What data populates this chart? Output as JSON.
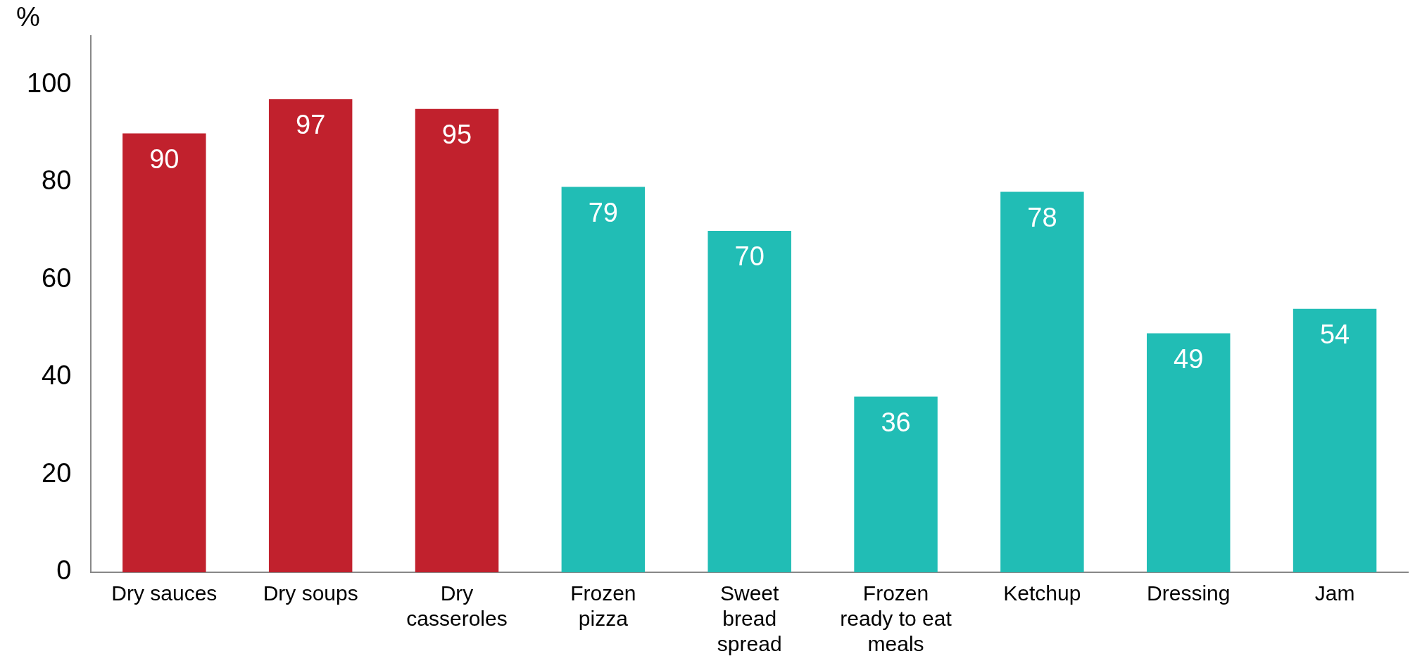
{
  "chart_data": {
    "type": "bar",
    "ylabel": "%",
    "categories": [
      "Dry sauces",
      "Dry soups",
      "Dry casseroles",
      "Frozen pizza",
      "Sweet bread spread",
      "Frozen ready to eat meals",
      "Ketchup",
      "Dressing",
      "Jam"
    ],
    "values": [
      90,
      97,
      95,
      79,
      70,
      36,
      78,
      49,
      54
    ],
    "colors": [
      "#c1212d",
      "#c1212d",
      "#c1212d",
      "#21bdb5",
      "#21bdb5",
      "#21bdb5",
      "#21bdb5",
      "#21bdb5",
      "#21bdb5"
    ],
    "ylim": [
      0,
      110
    ],
    "yticks": [
      0,
      20,
      40,
      60,
      80,
      100
    ],
    "grid": false,
    "legend": false,
    "data_labels": true
  }
}
